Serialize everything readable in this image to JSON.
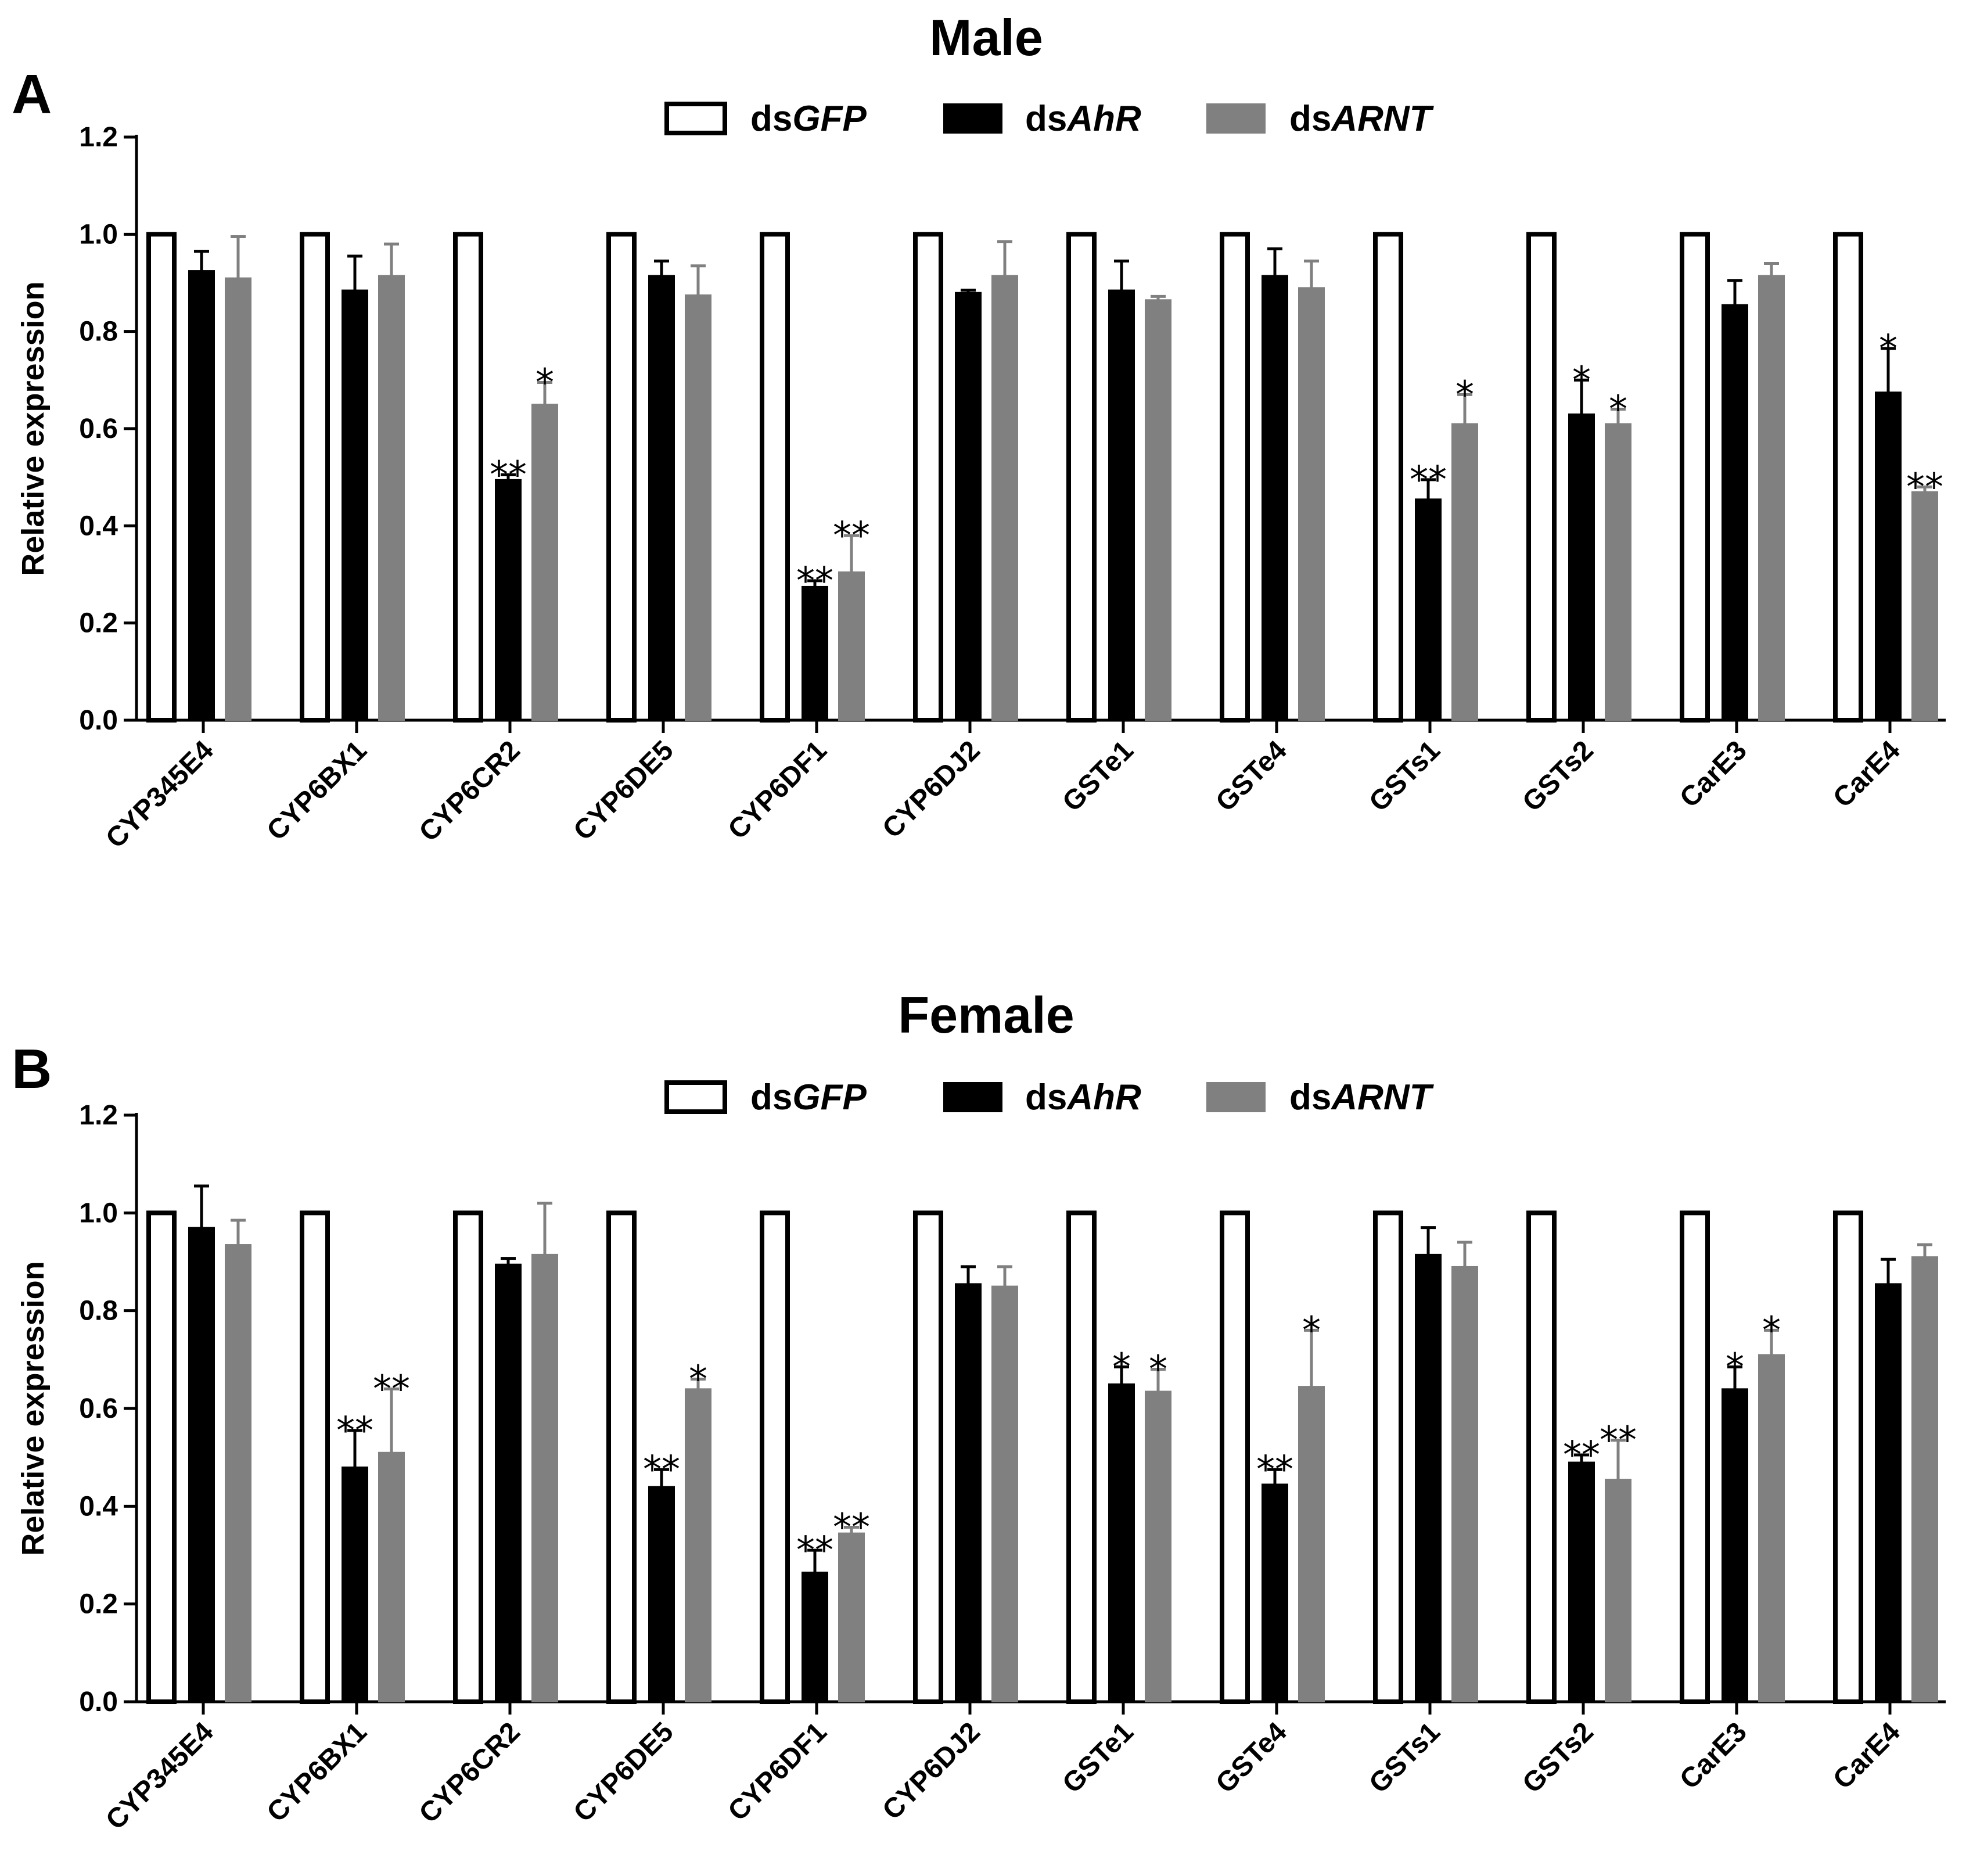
{
  "chart_data": [
    {
      "type": "bar",
      "panel": "A",
      "title": "Male",
      "ylabel": "Relative expression",
      "xlabel": "",
      "ylim": [
        0,
        1.2
      ],
      "yticks": [
        "0.0",
        "0.2",
        "0.4",
        "0.6",
        "0.8",
        "1.0",
        "1.2"
      ],
      "categories": [
        "CYP345E4",
        "CYP6BX1",
        "CYP6CR2",
        "CYP6DE5",
        "CYP6DF1",
        "CYP6DJ2",
        "GSTe1",
        "GSTe4",
        "GSTs1",
        "GSTs2",
        "CarE3",
        "CarE4"
      ],
      "legend": [
        {
          "prefix": "ds",
          "gene": "GFP"
        },
        {
          "prefix": "ds",
          "gene": "AhR"
        },
        {
          "prefix": "ds",
          "gene": "ARNT"
        }
      ],
      "series": [
        {
          "name": "dsGFP",
          "values": [
            1,
            1,
            1,
            1,
            1,
            1,
            1,
            1,
            1,
            1,
            1,
            1
          ],
          "errors": [
            0,
            0,
            0,
            0,
            0,
            0,
            0,
            0,
            0,
            0,
            0,
            0
          ],
          "sig": [
            "",
            "",
            "",
            "",
            "",
            "",
            "",
            "",
            "",
            "",
            "",
            ""
          ]
        },
        {
          "name": "dsAhR",
          "values": [
            0.925,
            0.885,
            0.495,
            0.915,
            0.275,
            0.88,
            0.885,
            0.915,
            0.455,
            0.63,
            0.855,
            0.675
          ],
          "errors": [
            0.04,
            0.07,
            0.01,
            0.03,
            0.012,
            0.005,
            0.06,
            0.055,
            0.04,
            0.07,
            0.05,
            0.09
          ],
          "sig": [
            "",
            "",
            "**",
            "",
            "**",
            "",
            "",
            "",
            "**",
            "*",
            "",
            "*"
          ]
        },
        {
          "name": "dsARNT",
          "values": [
            0.91,
            0.915,
            0.65,
            0.875,
            0.305,
            0.915,
            0.865,
            0.89,
            0.61,
            0.61,
            0.915,
            0.47
          ],
          "errors": [
            0.085,
            0.065,
            0.045,
            0.06,
            0.075,
            0.07,
            0.007,
            0.055,
            0.06,
            0.03,
            0.025,
            0.01
          ],
          "sig": [
            "",
            "",
            "*",
            "",
            "**",
            "",
            "",
            "",
            "*",
            "*",
            "",
            "**"
          ]
        }
      ]
    },
    {
      "type": "bar",
      "panel": "B",
      "title": "Female",
      "ylabel": "Relative expression",
      "xlabel": "",
      "ylim": [
        0,
        1.2
      ],
      "yticks": [
        "0.0",
        "0.2",
        "0.4",
        "0.6",
        "0.8",
        "1.0",
        "1.2"
      ],
      "categories": [
        "CYP345E4",
        "CYP6BX1",
        "CYP6CR2",
        "CYP6DE5",
        "CYP6DF1",
        "CYP6DJ2",
        "GSTe1",
        "GSTe4",
        "GSTs1",
        "GSTs2",
        "CarE3",
        "CarE4"
      ],
      "legend": [
        {
          "prefix": "ds",
          "gene": "GFP"
        },
        {
          "prefix": "ds",
          "gene": "AhR"
        },
        {
          "prefix": "ds",
          "gene": "ARNT"
        }
      ],
      "series": [
        {
          "name": "dsGFP",
          "values": [
            1,
            1,
            1,
            1,
            1,
            1,
            1,
            1,
            1,
            1,
            1,
            1
          ],
          "errors": [
            0,
            0,
            0,
            0,
            0,
            0,
            0,
            0,
            0,
            0,
            0,
            0
          ],
          "sig": [
            "",
            "",
            "",
            "",
            "",
            "",
            "",
            "",
            "",
            "",
            "",
            ""
          ]
        },
        {
          "name": "dsAhR",
          "values": [
            0.97,
            0.48,
            0.895,
            0.44,
            0.265,
            0.855,
            0.65,
            0.445,
            0.915,
            0.49,
            0.64,
            0.855
          ],
          "errors": [
            0.085,
            0.075,
            0.012,
            0.035,
            0.045,
            0.035,
            0.035,
            0.03,
            0.055,
            0.015,
            0.045,
            0.05
          ],
          "sig": [
            "",
            "**",
            "",
            "**",
            "**",
            "",
            "*",
            "**",
            "",
            "**",
            "*",
            ""
          ]
        },
        {
          "name": "dsARNT",
          "values": [
            0.935,
            0.51,
            0.915,
            0.64,
            0.345,
            0.85,
            0.635,
            0.645,
            0.89,
            0.455,
            0.71,
            0.91
          ],
          "errors": [
            0.05,
            0.13,
            0.105,
            0.02,
            0.012,
            0.04,
            0.045,
            0.115,
            0.05,
            0.08,
            0.05,
            0.025
          ],
          "sig": [
            "",
            "**",
            "",
            "*",
            "**",
            "",
            "*",
            "*",
            "",
            "**",
            "*",
            ""
          ]
        }
      ]
    }
  ]
}
